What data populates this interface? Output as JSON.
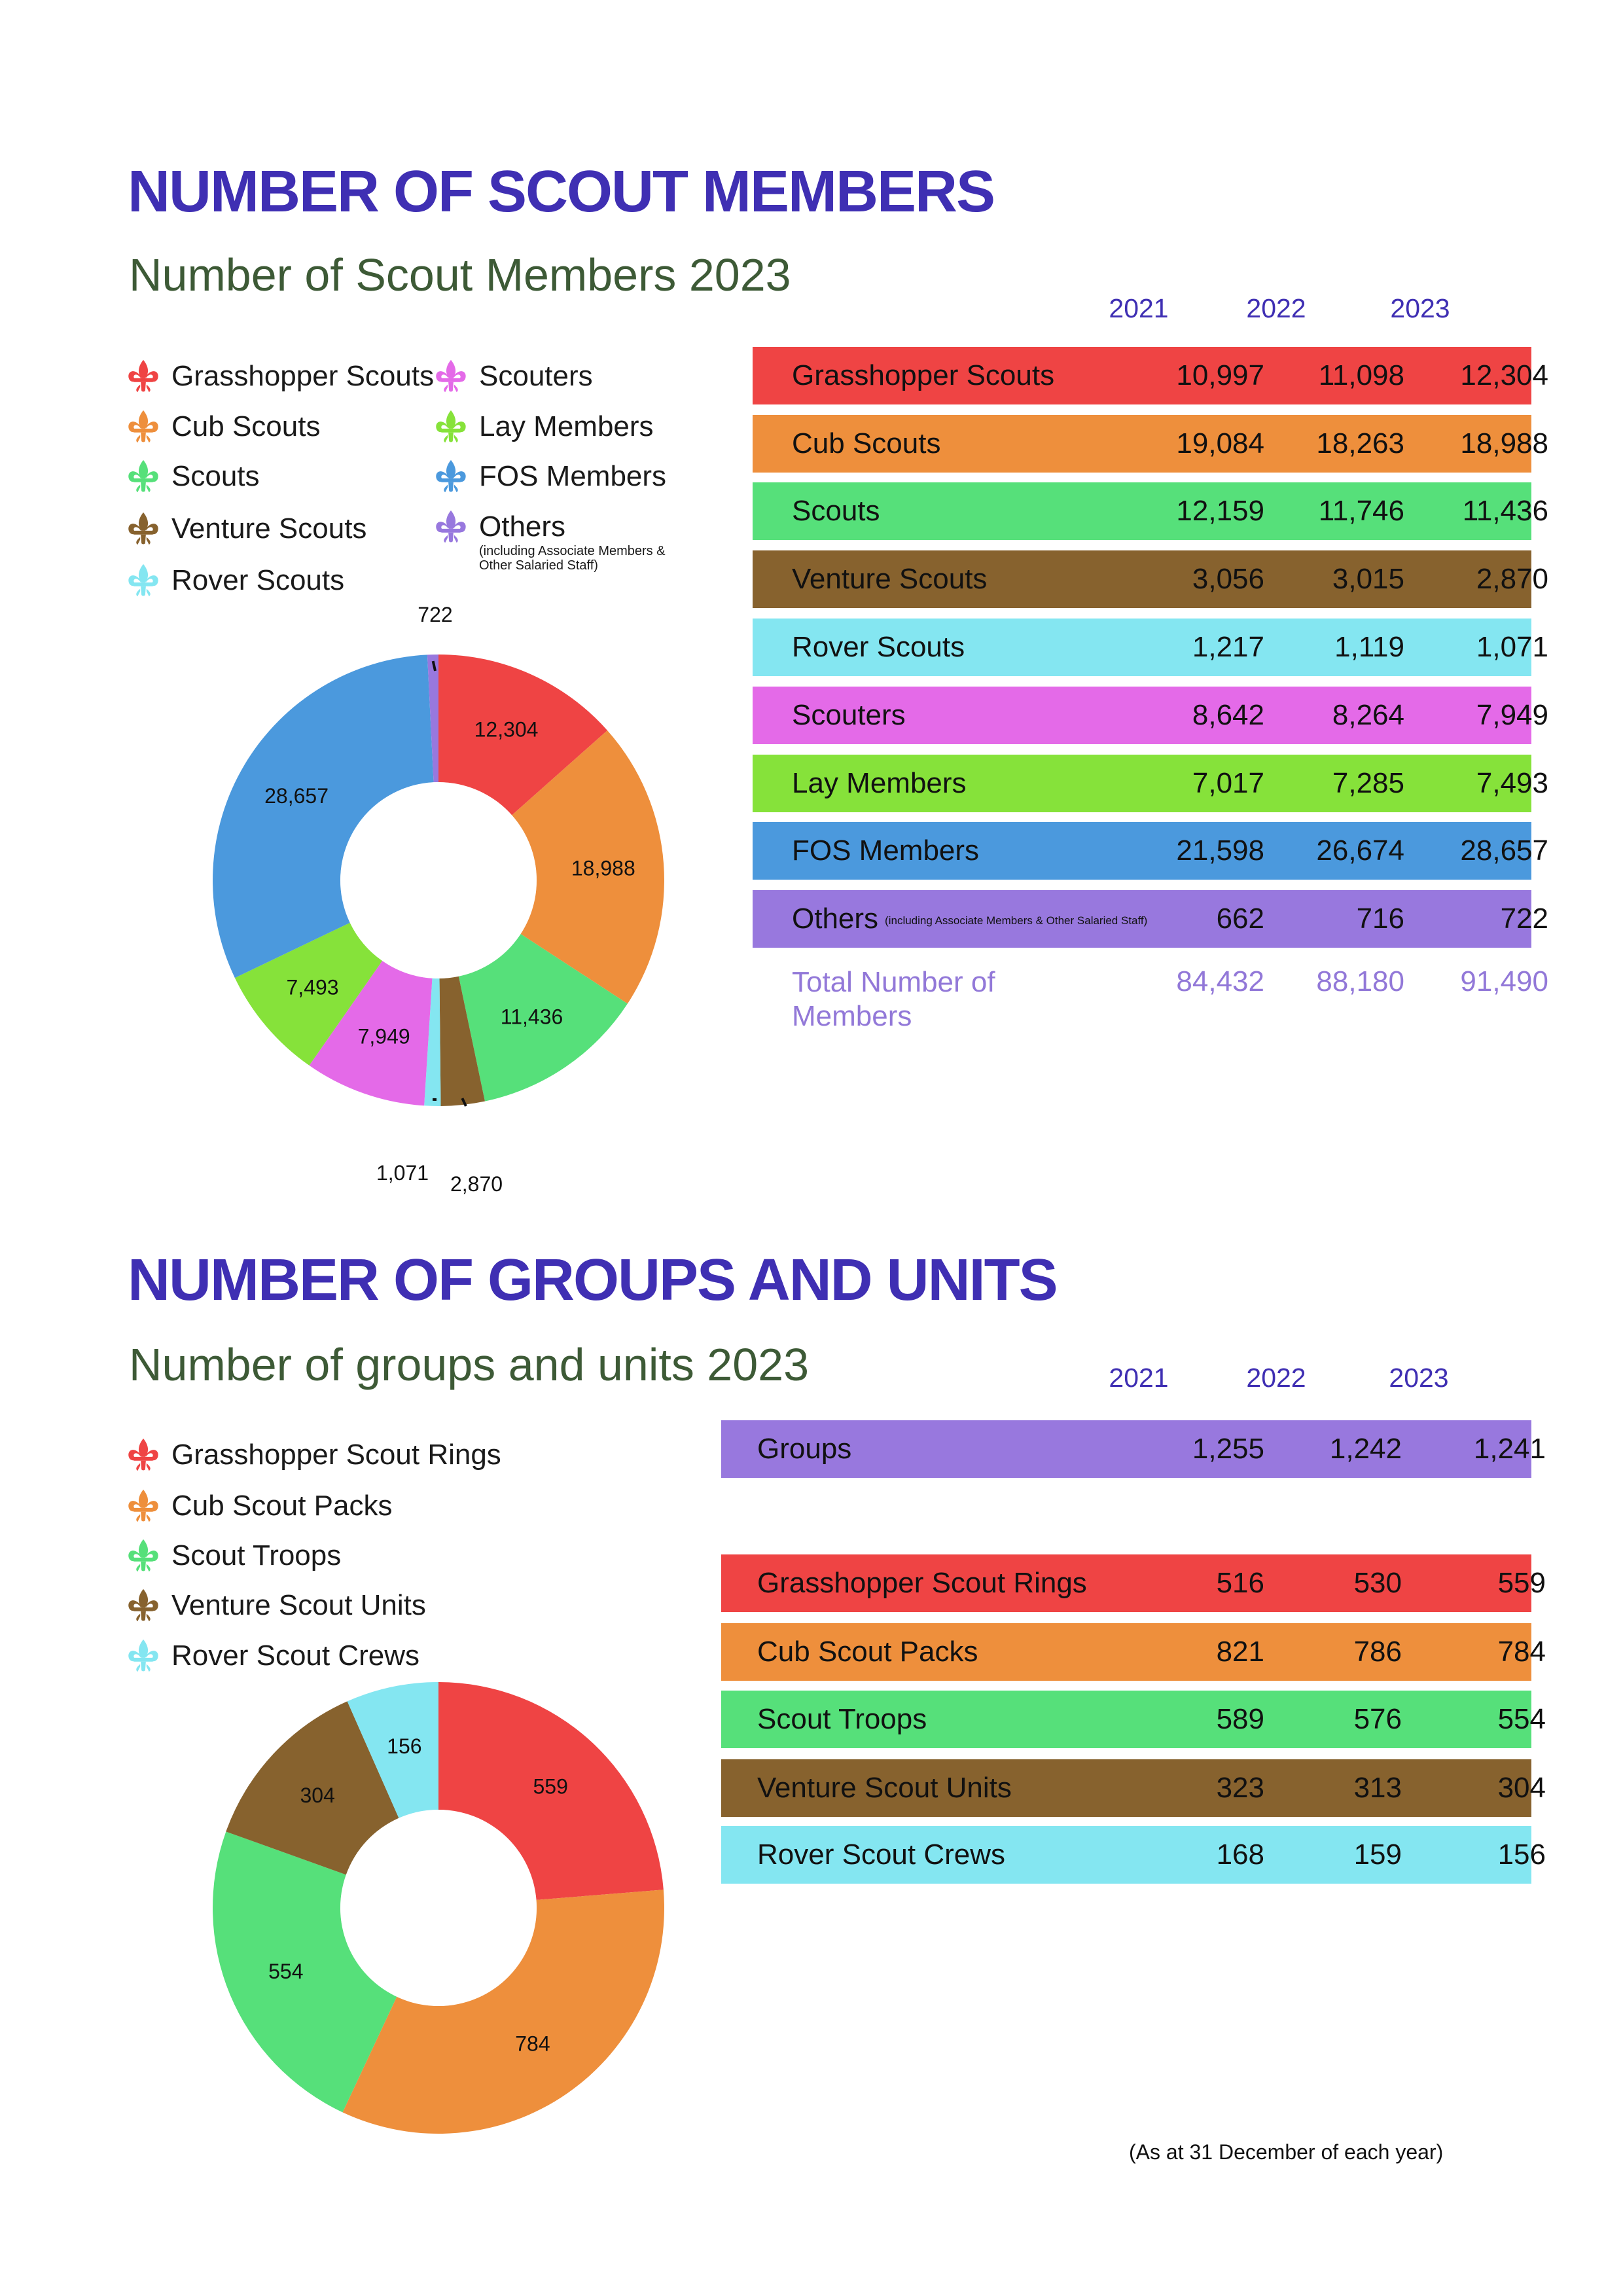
{
  "section1": {
    "title": "NUMBER OF SCOUT MEMBERS",
    "subtitle": "Number of Scout Members 2023",
    "years": [
      "2021",
      "2022",
      "2023"
    ],
    "legend": [
      {
        "label": "Grasshopper Scouts",
        "color": "#ef4444"
      },
      {
        "label": "Cub Scouts",
        "color": "#ee8f3c"
      },
      {
        "label": "Scouts",
        "color": "#56e07a"
      },
      {
        "label": "Venture Scouts",
        "color": "#87622e"
      },
      {
        "label": "Rover Scouts",
        "color": "#84e6f1"
      },
      {
        "label": "Scouters",
        "color": "#e46ae8"
      },
      {
        "label": "Lay Members",
        "color": "#86e23a"
      },
      {
        "label": "FOS Members",
        "color": "#4b99dd"
      },
      {
        "label": "Others",
        "color": "#9878de",
        "note": "(including Associate Members & Other Salaried Staff)"
      }
    ],
    "rows": [
      {
        "label": "Grasshopper Scouts",
        "color": "#ef4444",
        "values": [
          "10,997",
          "11,098",
          "12,304"
        ]
      },
      {
        "label": "Cub Scouts",
        "color": "#ee8f3c",
        "values": [
          "19,084",
          "18,263",
          "18,988"
        ]
      },
      {
        "label": "Scouts",
        "color": "#56e07a",
        "values": [
          "12,159",
          "11,746",
          "11,436"
        ]
      },
      {
        "label": "Venture Scouts",
        "color": "#87622e",
        "values": [
          "3,056",
          "3,015",
          "2,870"
        ]
      },
      {
        "label": "Rover Scouts",
        "color": "#84e6f1",
        "values": [
          "1,217",
          "1,119",
          "1,071"
        ]
      },
      {
        "label": "Scouters",
        "color": "#e46ae8",
        "values": [
          "8,642",
          "8,264",
          "7,949"
        ]
      },
      {
        "label": "Lay Members",
        "color": "#86e23a",
        "values": [
          "7,017",
          "7,285",
          "7,493"
        ]
      },
      {
        "label": "FOS Members",
        "color": "#4b99dd",
        "values": [
          "21,598",
          "26,674",
          "28,657"
        ]
      },
      {
        "label": "Others",
        "note": "(including Associate Members & Other Salaried Staff)",
        "color": "#9878de",
        "values": [
          "662",
          "716",
          "722"
        ]
      }
    ],
    "total": {
      "label": "Total Number of Members",
      "values": [
        "84,432",
        "88,180",
        "91,490"
      ]
    }
  },
  "section2": {
    "title": "NUMBER OF GROUPS AND UNITS",
    "subtitle": "Number of groups and units 2023",
    "years": [
      "2021",
      "2022",
      "2023"
    ],
    "legend": [
      {
        "label": "Grasshopper Scout Rings",
        "color": "#ef4444"
      },
      {
        "label": "Cub Scout Packs",
        "color": "#ee8f3c"
      },
      {
        "label": "Scout Troops",
        "color": "#56e07a"
      },
      {
        "label": "Venture Scout Units",
        "color": "#87622e"
      },
      {
        "label": "Rover Scout Crews",
        "color": "#84e6f1"
      }
    ],
    "groups": {
      "label": "Groups",
      "color": "#9878de",
      "values": [
        "1,255",
        "1,242",
        "1,241"
      ]
    },
    "rows": [
      {
        "label": "Grasshopper Scout Rings",
        "color": "#ef4444",
        "values": [
          "516",
          "530",
          "559"
        ]
      },
      {
        "label": "Cub Scout Packs",
        "color": "#ee8f3c",
        "values": [
          "821",
          "786",
          "784"
        ]
      },
      {
        "label": "Scout Troops",
        "color": "#56e07a",
        "values": [
          "589",
          "576",
          "554"
        ]
      },
      {
        "label": "Venture Scout Units",
        "color": "#87622e",
        "values": [
          "323",
          "313",
          "304"
        ]
      },
      {
        "label": "Rover Scout Crews",
        "color": "#84e6f1",
        "values": [
          "168",
          "159",
          "156"
        ]
      }
    ]
  },
  "footnote": "(As at 31 December of each year)",
  "chart_data": [
    {
      "type": "pie",
      "categories": [
        "Grasshopper Scouts",
        "Cub Scouts",
        "Scouts",
        "Venture Scouts",
        "Rover Scouts",
        "Scouters",
        "Lay Members",
        "FOS Members",
        "Others"
      ],
      "values": [
        12304,
        18988,
        11436,
        2870,
        1071,
        7949,
        7493,
        28657,
        722
      ],
      "labels": [
        "12,304",
        "18,988",
        "11,436",
        "2,870",
        "1,071",
        "7,949",
        "7,493",
        "28,657",
        "722"
      ],
      "colors": [
        "#ef4444",
        "#ee8f3c",
        "#56e07a",
        "#87622e",
        "#84e6f1",
        "#e46ae8",
        "#86e23a",
        "#4b99dd",
        "#9878de"
      ],
      "title": "Number of Scout Members 2023"
    },
    {
      "type": "pie",
      "categories": [
        "Grasshopper Scout Rings",
        "Cub Scout Packs",
        "Scout Troops",
        "Venture Scout Units",
        "Rover Scout Crews"
      ],
      "values": [
        559,
        784,
        554,
        304,
        156
      ],
      "labels": [
        "559",
        "784",
        "554",
        "304",
        "156"
      ],
      "colors": [
        "#ef4444",
        "#ee8f3c",
        "#56e07a",
        "#87622e",
        "#84e6f1"
      ],
      "title": "Number of groups and units 2023"
    }
  ]
}
